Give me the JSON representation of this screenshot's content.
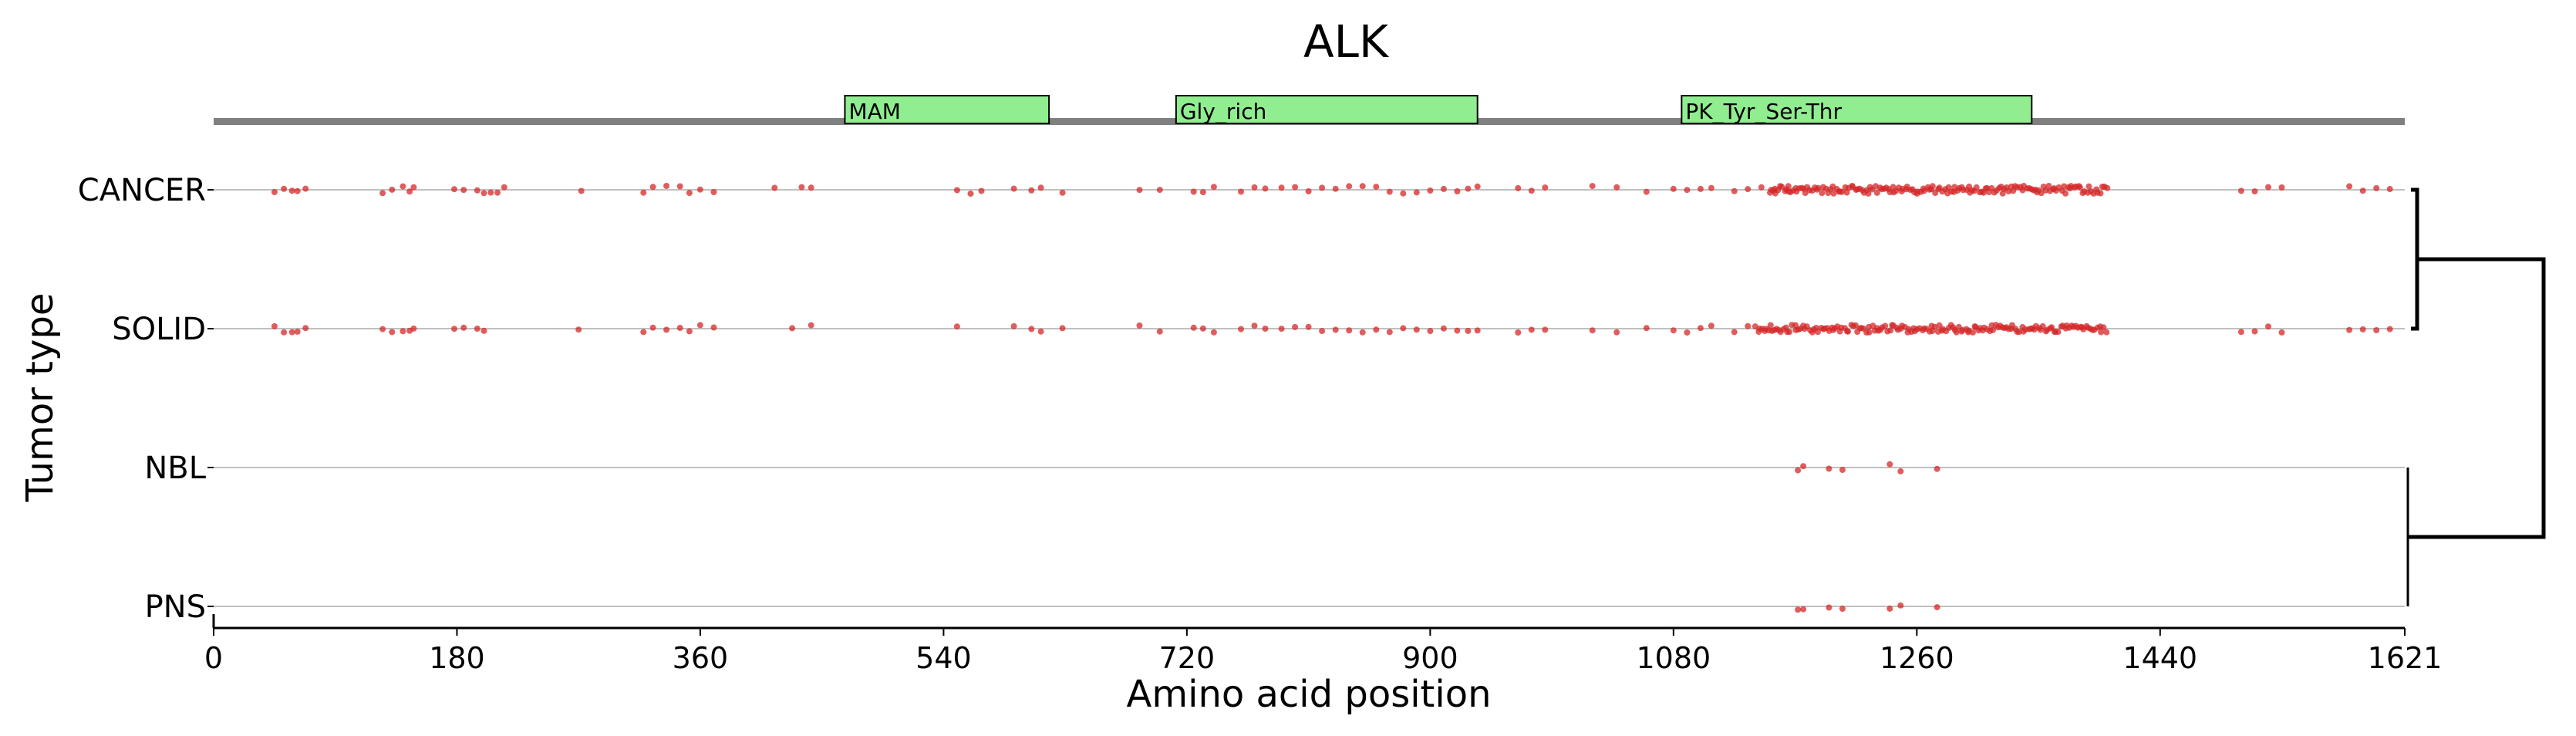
{
  "chart_data": {
    "type": "scatter",
    "title": "ALK",
    "xlabel": "Amino acid position",
    "ylabel": "Tumor type",
    "xlim": [
      0,
      1621
    ],
    "xticks": [
      0,
      180,
      360,
      540,
      720,
      900,
      1080,
      1260,
      1440,
      1621
    ],
    "rows": [
      "CANCER",
      "SOLID",
      "NBL",
      "PNS"
    ],
    "domains": [
      {
        "label": "MAM",
        "start": 467,
        "end": 618
      },
      {
        "label": "Gly_rich",
        "start": 712,
        "end": 935
      },
      {
        "label": "PK_Tyr_Ser-Thr",
        "start": 1086,
        "end": 1345
      }
    ],
    "point_color": "#d62728",
    "domain_color": "#90ee90",
    "backbone_color": "#808080",
    "dendrogram": "(CANCER,SOLID),(NBL,PNS)",
    "series": [
      {
        "name": "CANCER",
        "dense_ranges": [
          [
            1150,
            1400
          ]
        ],
        "positions": [
          45,
          52,
          58,
          62,
          68,
          125,
          132,
          140,
          145,
          148,
          178,
          185,
          195,
          200,
          205,
          210,
          215,
          272,
          318,
          325,
          335,
          345,
          352,
          360,
          370,
          415,
          435,
          442,
          550,
          560,
          568,
          592,
          605,
          612,
          628,
          685,
          700,
          725,
          732,
          740,
          760,
          770,
          778,
          790,
          800,
          810,
          820,
          830,
          840,
          850,
          860,
          870,
          880,
          890,
          900,
          910,
          920,
          928,
          935,
          965,
          975,
          985,
          1020,
          1038,
          1060,
          1080,
          1090,
          1100,
          1108,
          1125,
          1135,
          1145,
          1155,
          1165,
          1500,
          1510,
          1520,
          1530,
          1580,
          1590,
          1600,
          1610
        ]
      },
      {
        "name": "SOLID",
        "dense_ranges": [
          [
            1140,
            1400
          ]
        ],
        "positions": [
          45,
          52,
          58,
          62,
          68,
          125,
          132,
          140,
          145,
          148,
          178,
          185,
          195,
          200,
          270,
          318,
          325,
          335,
          345,
          352,
          360,
          370,
          428,
          442,
          550,
          592,
          605,
          612,
          628,
          685,
          700,
          725,
          732,
          740,
          760,
          770,
          778,
          790,
          800,
          810,
          820,
          830,
          840,
          850,
          860,
          870,
          880,
          890,
          900,
          910,
          920,
          928,
          935,
          965,
          975,
          985,
          1020,
          1038,
          1060,
          1080,
          1090,
          1100,
          1108,
          1125,
          1135,
          1500,
          1510,
          1520,
          1530,
          1580,
          1590,
          1600,
          1610
        ]
      },
      {
        "name": "NBL",
        "dense_ranges": [],
        "positions": [
          1172,
          1176,
          1195,
          1205,
          1240,
          1248,
          1275
        ]
      },
      {
        "name": "PNS",
        "dense_ranges": [],
        "positions": [
          1172,
          1176,
          1195,
          1205,
          1240,
          1248,
          1275
        ]
      }
    ]
  }
}
